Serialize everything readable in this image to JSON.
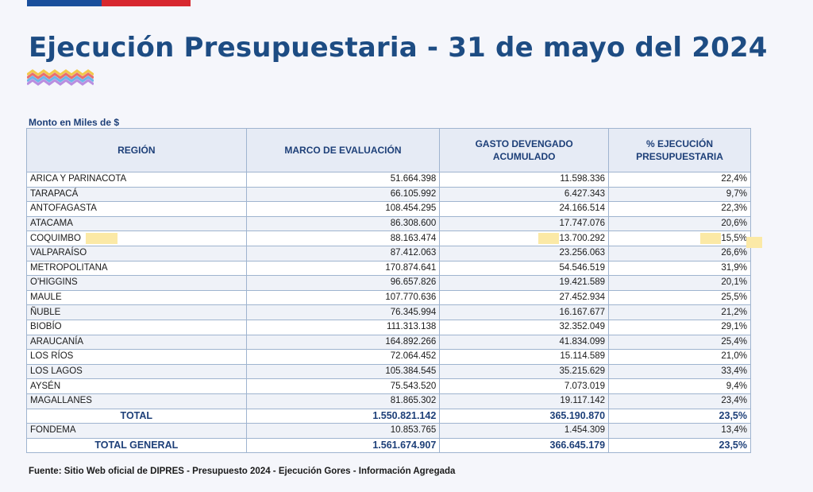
{
  "header": {
    "title": "Ejecución Presupuestaria - 31 de mayo del 2024",
    "brand_colors": {
      "blue": "#1a4f9c",
      "red": "#d7282f"
    }
  },
  "unit_label": "Monto en Miles de $",
  "table": {
    "columns": [
      "REGIÓN",
      "MARCO DE EVALUACIÓN",
      "GASTO DEVENGADO ACUMULADO",
      "% EJECUCIÓN PRESUPUESTARIA"
    ],
    "rows": [
      {
        "region": "ARICA Y PARINACOTA",
        "marco": "51.664.398",
        "gasto": "11.598.336",
        "pct": "22,4%"
      },
      {
        "region": "TARAPACÁ",
        "marco": "66.105.992",
        "gasto": "6.427.343",
        "pct": "9,7%"
      },
      {
        "region": "ANTOFAGASTA",
        "marco": "108.454.295",
        "gasto": "24.166.514",
        "pct": "22,3%"
      },
      {
        "region": "ATACAMA",
        "marco": "86.308.600",
        "gasto": "17.747.076",
        "pct": "20,6%"
      },
      {
        "region": "COQUIMBO",
        "marco": "88.163.474",
        "gasto": "13.700.292",
        "pct": "15,5%",
        "highlight": true
      },
      {
        "region": "VALPARAÍSO",
        "marco": "87.412.063",
        "gasto": "23.256.063",
        "pct": "26,6%"
      },
      {
        "region": "METROPOLITANA",
        "marco": "170.874.641",
        "gasto": "54.546.519",
        "pct": "31,9%"
      },
      {
        "region": "O'HIGGINS",
        "marco": "96.657.826",
        "gasto": "19.421.589",
        "pct": "20,1%"
      },
      {
        "region": "MAULE",
        "marco": "107.770.636",
        "gasto": "27.452.934",
        "pct": "25,5%"
      },
      {
        "region": "ÑUBLE",
        "marco": "76.345.994",
        "gasto": "16.167.677",
        "pct": "21,2%"
      },
      {
        "region": "BIOBÍO",
        "marco": "111.313.138",
        "gasto": "32.352.049",
        "pct": "29,1%"
      },
      {
        "region": "ARAUCANÍA",
        "marco": "164.892.266",
        "gasto": "41.834.099",
        "pct": "25,4%"
      },
      {
        "region": "LOS RÍOS",
        "marco": "72.064.452",
        "gasto": "15.114.589",
        "pct": "21,0%"
      },
      {
        "region": "LOS LAGOS",
        "marco": "105.384.545",
        "gasto": "35.215.629",
        "pct": "33,4%"
      },
      {
        "region": "AYSÉN",
        "marco": "75.543.520",
        "gasto": "7.073.019",
        "pct": "9,4%"
      },
      {
        "region": "MAGALLANES",
        "marco": "81.865.302",
        "gasto": "19.117.142",
        "pct": "23,4%"
      }
    ],
    "total": {
      "region": "TOTAL",
      "marco": "1.550.821.142",
      "gasto": "365.190.870",
      "pct": "23,5%"
    },
    "fondema": {
      "region": "FONDEMA",
      "marco": "10.853.765",
      "gasto": "1.454.309",
      "pct": "13,4%"
    },
    "total_general": {
      "region": "TOTAL GENERAL",
      "marco": "1.561.674.907",
      "gasto": "366.645.179",
      "pct": "23,5%"
    }
  },
  "source": "Fuente: Sitio Web oficial de DIPRES - Presupuesto 2024 - Ejecución Gores - Información Agregada"
}
